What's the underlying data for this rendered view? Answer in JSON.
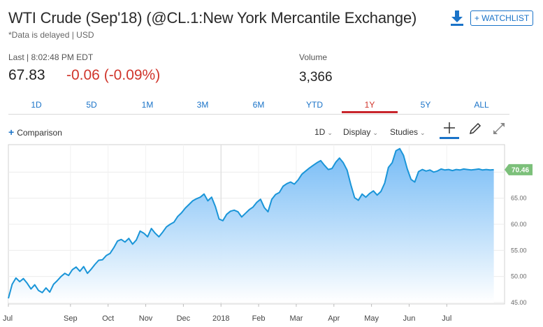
{
  "header": {
    "title": "WTI Crude (Sep'18) (@CL.1:New York Mercantile Exchange)",
    "delayed_note": "*Data is delayed | USD",
    "watchlist_label": "+ WATCHLIST",
    "download_icon": "download-icon"
  },
  "quote": {
    "last_label": "Last | 8:02:48 PM EDT",
    "last_price": "67.83",
    "change": "-0.06 (-0.09%)",
    "volume_label": "Volume",
    "volume_value": "3,366",
    "change_color": "#d0352b"
  },
  "range_tabs": [
    {
      "label": "1D",
      "active": false
    },
    {
      "label": "5D",
      "active": false
    },
    {
      "label": "1M",
      "active": false
    },
    {
      "label": "3M",
      "active": false
    },
    {
      "label": "6M",
      "active": false
    },
    {
      "label": "YTD",
      "active": false
    },
    {
      "label": "1Y",
      "active": true
    },
    {
      "label": "5Y",
      "active": false
    },
    {
      "label": "ALL",
      "active": false
    }
  ],
  "toolbar": {
    "comparison_label": "Comparison",
    "interval_label": "1D",
    "display_label": "Display",
    "studies_label": "Studies",
    "icons": [
      "crosshair-icon",
      "pencil-icon",
      "expand-icon"
    ]
  },
  "chart_data": {
    "type": "area",
    "title": "",
    "xlabel": "",
    "ylabel": "",
    "ylim": [
      45,
      75
    ],
    "yticks": [
      45,
      50,
      55,
      60,
      65,
      70
    ],
    "ytick_labels": [
      "45.00",
      "50.00",
      "55.00",
      "60.00",
      "65.00",
      "70.00"
    ],
    "xticks": [
      {
        "x": 0,
        "label": "Jul"
      },
      {
        "x": 1.65,
        "label": "Sep"
      },
      {
        "x": 2.65,
        "label": "Oct"
      },
      {
        "x": 3.65,
        "label": "Nov"
      },
      {
        "x": 4.65,
        "label": "Dec"
      },
      {
        "x": 5.65,
        "label": "2018"
      },
      {
        "x": 6.65,
        "label": "Feb"
      },
      {
        "x": 7.65,
        "label": "Mar"
      },
      {
        "x": 8.65,
        "label": "Apr"
      },
      {
        "x": 9.65,
        "label": "May"
      },
      {
        "x": 10.65,
        "label": "Jun"
      },
      {
        "x": 11.65,
        "label": "Jul"
      }
    ],
    "vline_x": 5.65,
    "current_value_label": "70.46",
    "line_color": "#1a95d8",
    "fill_top_color": "#6fb8f5",
    "fill_bottom_color": "#ffffff",
    "badge_color": "#7cc07a",
    "series": [
      {
        "x": [
          0,
          0.1,
          0.2,
          0.3,
          0.4,
          0.5,
          0.6,
          0.7,
          0.8,
          0.9,
          1.0,
          1.1,
          1.2,
          1.3,
          1.4,
          1.5,
          1.6,
          1.7,
          1.8,
          1.9,
          2.0,
          2.1,
          2.2,
          2.3,
          2.4,
          2.5,
          2.6,
          2.7,
          2.8,
          2.9,
          3.0,
          3.1,
          3.2,
          3.3,
          3.4,
          3.5,
          3.6,
          3.7,
          3.8,
          3.9,
          4.0,
          4.1,
          4.2,
          4.3,
          4.4,
          4.5,
          4.6,
          4.7,
          4.8,
          4.9,
          5.0,
          5.1,
          5.2,
          5.3,
          5.4,
          5.5,
          5.6,
          5.7,
          5.8,
          5.9,
          6.0,
          6.1,
          6.2,
          6.3,
          6.4,
          6.5,
          6.6,
          6.7,
          6.8,
          6.9,
          7.0,
          7.1,
          7.2,
          7.3,
          7.4,
          7.5,
          7.6,
          7.7,
          7.8,
          7.9,
          8.0,
          8.1,
          8.2,
          8.3,
          8.4,
          8.5,
          8.6,
          8.7,
          8.8,
          8.9,
          9.0,
          9.1,
          9.2,
          9.3,
          9.4,
          9.5,
          9.6,
          9.7,
          9.8,
          9.9,
          10.0,
          10.1,
          10.2,
          10.3,
          10.4,
          10.5,
          10.6,
          10.7,
          10.8,
          10.9,
          11.0,
          11.1,
          11.2,
          11.3,
          11.4,
          11.5,
          11.6,
          11.7,
          11.8,
          11.9,
          12.0,
          12.1,
          12.2,
          12.3,
          12.4,
          12.5,
          12.6,
          12.7,
          12.8,
          12.9
        ],
        "values": [
          45.8,
          48.5,
          49.7,
          49.0,
          49.6,
          48.7,
          47.6,
          48.4,
          47.3,
          46.9,
          47.8,
          47.0,
          48.5,
          49.2,
          50.0,
          50.6,
          50.2,
          51.3,
          51.8,
          51.0,
          51.9,
          50.6,
          51.4,
          52.3,
          53.1,
          53.2,
          54.0,
          54.4,
          55.5,
          56.8,
          57.1,
          56.6,
          57.3,
          56.2,
          57.0,
          58.7,
          58.3,
          57.6,
          59.2,
          58.3,
          57.6,
          58.5,
          59.5,
          60.0,
          60.4,
          61.5,
          62.2,
          63.1,
          63.8,
          64.5,
          64.9,
          65.2,
          65.8,
          64.5,
          65.2,
          63.4,
          61.0,
          60.7,
          61.9,
          62.5,
          62.7,
          62.4,
          61.4,
          62.1,
          62.8,
          63.3,
          64.2,
          64.8,
          63.2,
          62.4,
          64.8,
          65.7,
          66.1,
          67.3,
          67.8,
          68.1,
          67.7,
          68.5,
          69.6,
          70.2,
          70.8,
          71.3,
          71.8,
          72.2,
          71.3,
          70.5,
          70.7,
          71.9,
          72.7,
          71.8,
          70.4,
          67.6,
          65.1,
          64.6,
          65.8,
          65.2,
          65.9,
          66.4,
          65.6,
          66.3,
          67.9,
          70.9,
          71.8,
          74.1,
          74.5,
          73.2,
          70.6,
          68.6,
          68.1,
          70.1,
          70.5,
          70.2,
          70.4,
          70.0,
          70.2,
          70.6,
          70.4,
          70.5,
          70.3,
          70.5,
          70.4,
          70.6,
          70.5,
          70.4,
          70.5,
          70.6,
          70.4,
          70.5,
          70.4,
          70.46
        ]
      }
    ]
  }
}
